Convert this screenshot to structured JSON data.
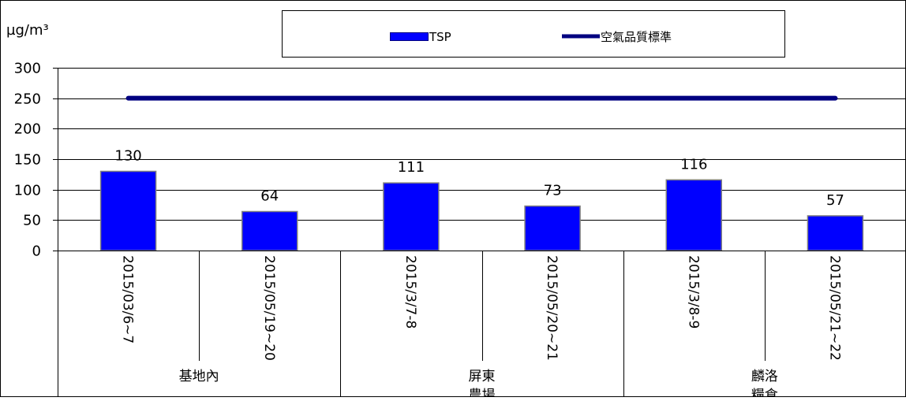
{
  "chart_data": {
    "type": "bar",
    "unit_label": "µg/m³",
    "categories": [
      "2015/03/6~7",
      "2015/05/19~20",
      "2015/3/7-8",
      "2015/05/20~21",
      "2015/3/8-9",
      "2015/05/21~22"
    ],
    "groups": [
      {
        "label": "基地內",
        "label_line2": ""
      },
      {
        "label": "屏東",
        "label_line2": "農場"
      },
      {
        "label": "麟洛",
        "label_line2": "糧倉"
      }
    ],
    "series": [
      {
        "name": "TSP",
        "type": "bar",
        "color": "#0000ff",
        "values": [
          130,
          64,
          111,
          73,
          116,
          57
        ]
      },
      {
        "name": "空氣品質標準",
        "type": "line",
        "color": "#000080",
        "values": [
          250,
          250,
          250,
          250,
          250,
          250
        ]
      }
    ],
    "ylim": [
      0,
      300
    ],
    "yticks": [
      "0",
      "50",
      "100",
      "150",
      "200",
      "250",
      "300"
    ],
    "grid": true,
    "legend_position": "top"
  }
}
